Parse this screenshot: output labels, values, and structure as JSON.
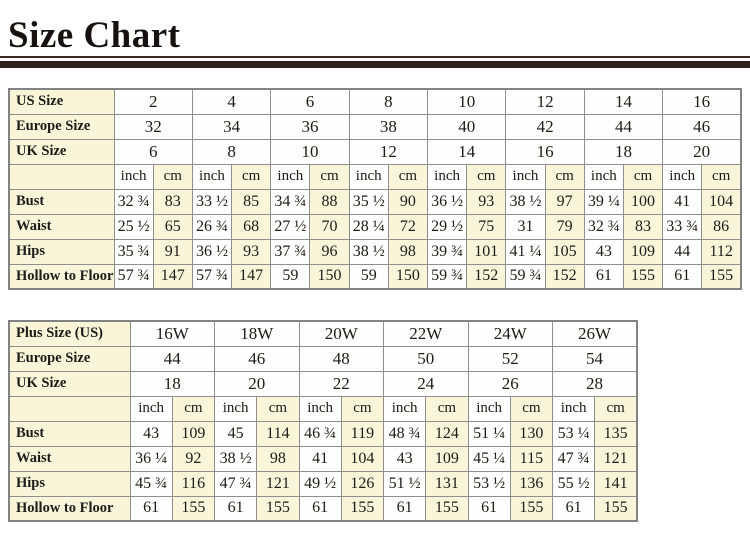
{
  "title": "Size Chart",
  "colors": {
    "cream_cell": "#f8f5d9",
    "white_cell": "#fefefe",
    "table_border": "#8f8f8f",
    "divider_bar": "#2f211b",
    "text": "#1f1b18"
  },
  "unit_labels": {
    "inch": "inch",
    "cm": "cm"
  },
  "tables": [
    {
      "name": "standard-size-table",
      "size_rows": [
        {
          "label": "US Size",
          "values": [
            "2",
            "4",
            "6",
            "8",
            "10",
            "12",
            "14",
            "16"
          ]
        },
        {
          "label": "Europe Size",
          "values": [
            "32",
            "34",
            "36",
            "38",
            "40",
            "42",
            "44",
            "46"
          ]
        },
        {
          "label": "UK Size",
          "values": [
            "6",
            "8",
            "10",
            "12",
            "14",
            "16",
            "18",
            "20"
          ]
        }
      ],
      "measure_rows": [
        {
          "label": "Bust",
          "inch": [
            "32 ¾",
            "33 ½",
            "34 ¾",
            "35 ½",
            "36 ½",
            "38 ½",
            "39 ¼",
            "41"
          ],
          "cm": [
            "83",
            "85",
            "88",
            "90",
            "93",
            "97",
            "100",
            "104"
          ]
        },
        {
          "label": "Waist",
          "inch": [
            "25 ½",
            "26 ¾",
            "27 ½",
            "28 ¼",
            "29 ½",
            "31",
            "32 ¾",
            "33 ¾"
          ],
          "cm": [
            "65",
            "68",
            "70",
            "72",
            "75",
            "79",
            "83",
            "86"
          ]
        },
        {
          "label": "Hips",
          "inch": [
            "35 ¾",
            "36 ½",
            "37 ¾",
            "38 ½",
            "39 ¾",
            "41 ¼",
            "43",
            "44"
          ],
          "cm": [
            "91",
            "93",
            "96",
            "98",
            "101",
            "105",
            "109",
            "112"
          ]
        },
        {
          "label": "Hollow to Floor",
          "inch": [
            "57 ¾",
            "57 ¾",
            "59",
            "59",
            "59 ¾",
            "59 ¾",
            "61",
            "61"
          ],
          "cm": [
            "147",
            "147",
            "150",
            "150",
            "152",
            "152",
            "155",
            "155"
          ]
        }
      ]
    },
    {
      "name": "plus-size-table",
      "size_rows": [
        {
          "label": "Plus Size (US)",
          "values": [
            "16W",
            "18W",
            "20W",
            "22W",
            "24W",
            "26W"
          ]
        },
        {
          "label": "Europe Size",
          "values": [
            "44",
            "46",
            "48",
            "50",
            "52",
            "54"
          ]
        },
        {
          "label": "UK Size",
          "values": [
            "18",
            "20",
            "22",
            "24",
            "26",
            "28"
          ]
        }
      ],
      "measure_rows": [
        {
          "label": "Bust",
          "inch": [
            "43",
            "45",
            "46 ¾",
            "48 ¾",
            "51 ¼",
            "53 ¼"
          ],
          "cm": [
            "109",
            "114",
            "119",
            "124",
            "130",
            "135"
          ]
        },
        {
          "label": "Waist",
          "inch": [
            "36 ¼",
            "38 ½",
            "41",
            "43",
            "45 ¼",
            "47 ¾"
          ],
          "cm": [
            "92",
            "98",
            "104",
            "109",
            "115",
            "121"
          ]
        },
        {
          "label": "Hips",
          "inch": [
            "45 ¾",
            "47 ¾",
            "49 ½",
            "51 ½",
            "53 ½",
            "55 ½"
          ],
          "cm": [
            "116",
            "121",
            "126",
            "131",
            "136",
            "141"
          ]
        },
        {
          "label": "Hollow to Floor",
          "inch": [
            "61",
            "61",
            "61",
            "61",
            "61",
            "61"
          ],
          "cm": [
            "155",
            "155",
            "155",
            "155",
            "155",
            "155"
          ]
        }
      ]
    }
  ]
}
